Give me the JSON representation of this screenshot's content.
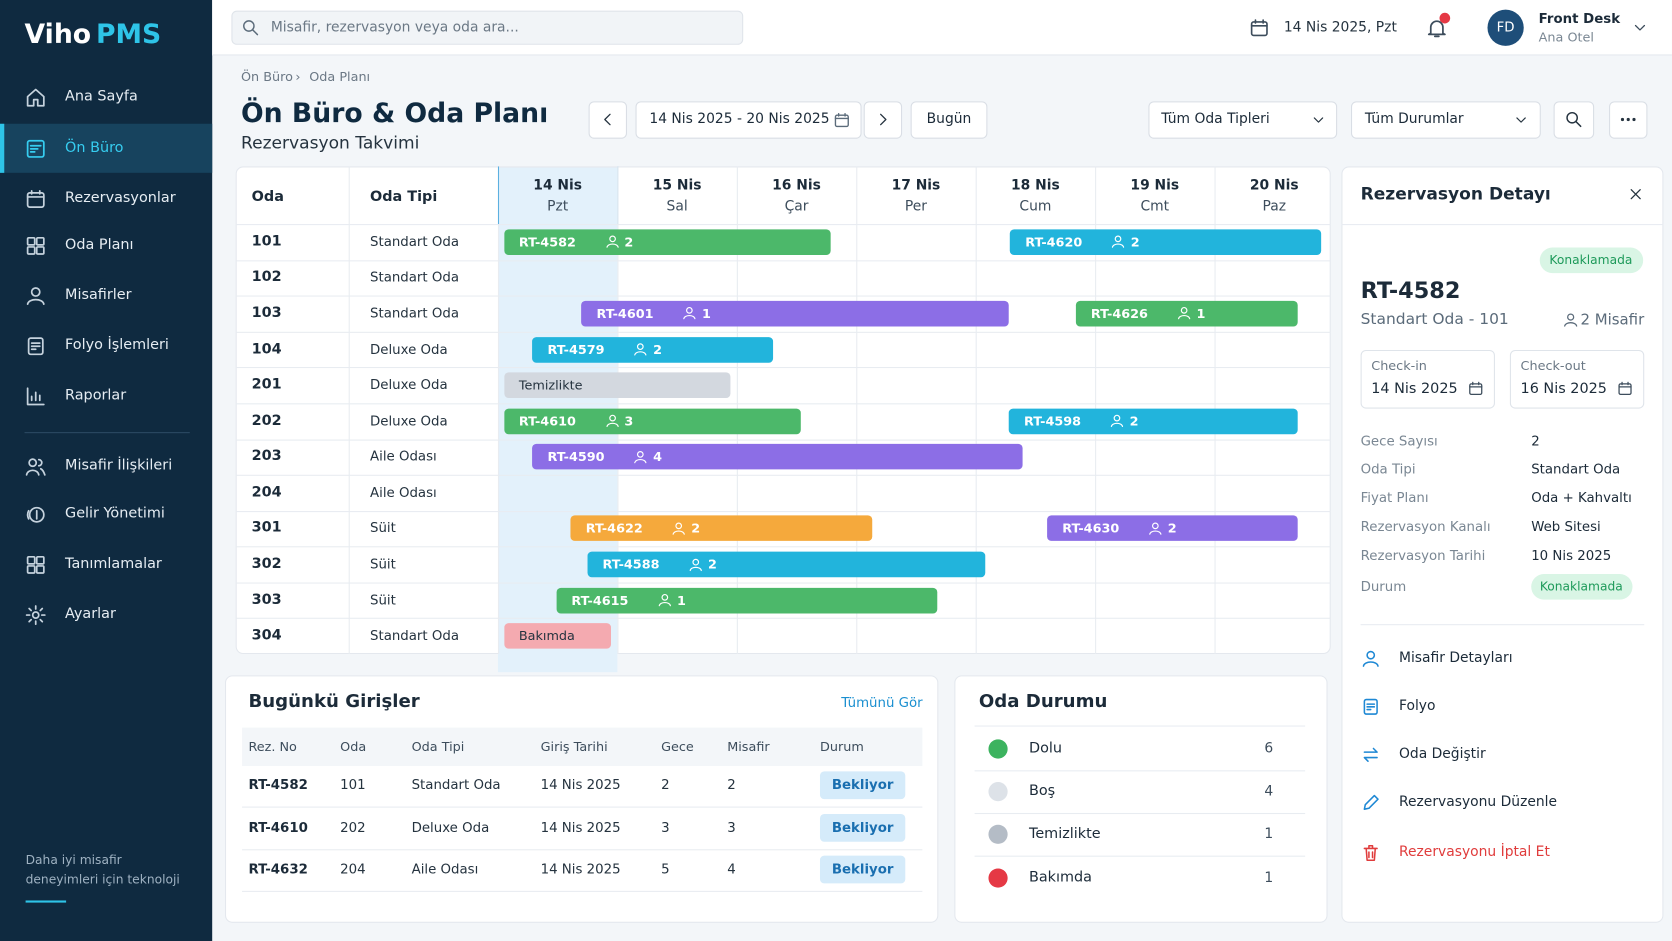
{
  "brand": {
    "name": "Viho",
    "product": "PMS"
  },
  "nav": {
    "primary": [
      "Ana Sayfa",
      "Ön Büro",
      "Rezervasyonlar",
      "Oda Planı",
      "Misafirler",
      "Folyo İşlemleri",
      "Raporlar"
    ],
    "secondary": [
      "Misafir İlişkileri",
      "Gelir Yönetimi",
      "Tanımlamalar",
      "Ayarlar"
    ],
    "active": "Ön Büro",
    "footer": "Daha iyi misafir deneyimleri için teknoloji"
  },
  "topbar": {
    "search_placeholder": "Misafir, rezervasyon veya oda ara...",
    "date": "14 Nis 2025, Pzt",
    "user": {
      "initials": "FD",
      "name": "Front Desk",
      "hotel": "Ana Otel"
    }
  },
  "breadcrumb": [
    "Ön Büro",
    "Oda Planı"
  ],
  "header": {
    "title": "Ön Büro & Oda Planı",
    "subtitle": "Rezervasyon Takvimi",
    "date_range": "14 Nis 2025 - 20 Nis 2025",
    "today_button": "Bugün",
    "room_type_filter": "Tüm Oda Tipleri",
    "status_filter": "Tüm Durumlar"
  },
  "calendar": {
    "columns": [
      "Oda",
      "Oda Tipi"
    ],
    "days": [
      {
        "date": "14 Nis",
        "day": "Pzt"
      },
      {
        "date": "15 Nis",
        "day": "Sal"
      },
      {
        "date": "16 Nis",
        "day": "Çar"
      },
      {
        "date": "17 Nis",
        "day": "Per"
      },
      {
        "date": "18 Nis",
        "day": "Cum"
      },
      {
        "date": "19 Nis",
        "day": "Cmt"
      },
      {
        "date": "20 Nis",
        "day": "Paz"
      }
    ],
    "rooms": [
      {
        "number": "101",
        "type": "Standart Oda",
        "bookings": [
          {
            "label": "RT-4582",
            "guests": 2,
            "color": "#4cb86a"
          },
          {
            "label": "RT-4620",
            "guests": 2,
            "color": "#22b4dc"
          }
        ]
      },
      {
        "number": "102",
        "type": "Standart Oda",
        "bookings": []
      },
      {
        "number": "103",
        "type": "Standart Oda",
        "bookings": [
          {
            "label": "RT-4601",
            "guests": 1,
            "color": "#8c6ee6"
          },
          {
            "label": "RT-4626",
            "guests": 1,
            "color": "#4cb86a"
          }
        ]
      },
      {
        "number": "104",
        "type": "Deluxe Oda",
        "bookings": [
          {
            "label": "RT-4579",
            "guests": 2,
            "color": "#22b4dc"
          }
        ]
      },
      {
        "number": "201",
        "type": "Deluxe Oda",
        "bookings": [
          {
            "label": "Temizlikte",
            "color": "#d3d8df"
          }
        ]
      },
      {
        "number": "202",
        "type": "Deluxe Oda",
        "bookings": [
          {
            "label": "RT-4610",
            "guests": 3,
            "color": "#4cb86a"
          },
          {
            "label": "RT-4598",
            "guests": 2,
            "color": "#22b4dc"
          }
        ]
      },
      {
        "number": "203",
        "type": "Aile Odası",
        "bookings": [
          {
            "label": "RT-4590",
            "guests": 4,
            "color": "#8c6ee6"
          }
        ]
      },
      {
        "number": "204",
        "type": "Aile Odası",
        "bookings": []
      },
      {
        "number": "301",
        "type": "Süit",
        "bookings": [
          {
            "label": "RT-4622",
            "guests": 2,
            "color": "#f5a93c"
          },
          {
            "label": "RT-4630",
            "guests": 2,
            "color": "#8c6ee6"
          }
        ]
      },
      {
        "number": "302",
        "type": "Süit",
        "bookings": [
          {
            "label": "RT-4588",
            "guests": 2,
            "color": "#22b4dc"
          }
        ]
      },
      {
        "number": "303",
        "type": "Süit",
        "bookings": [
          {
            "label": "RT-4615",
            "guests": 1,
            "color": "#4cb86a"
          }
        ]
      },
      {
        "number": "304",
        "type": "Standart Oda",
        "bookings": [
          {
            "label": "Bakımda",
            "color": "#f4aab0"
          }
        ]
      }
    ]
  },
  "arrivals": {
    "title": "Bugünkü Girişler",
    "link": "Tümünü Gör",
    "headers": [
      "Rez. No",
      "Oda",
      "Oda Tipi",
      "Giriş Tarihi",
      "Gece",
      "Misafir",
      "Durum"
    ],
    "rows": [
      [
        "RT-4582",
        "101",
        "Standart Oda",
        "14 Nis 2025",
        2,
        2,
        "Bekliyor"
      ],
      [
        "RT-4610",
        "202",
        "Deluxe Oda",
        "14 Nis 2025",
        3,
        3,
        "Bekliyor"
      ],
      [
        "RT-4632",
        "204",
        "Aile Odası",
        "14 Nis 2025",
        5,
        4,
        "Bekliyor"
      ]
    ]
  },
  "room_status": {
    "title": "Oda Durumu",
    "items": [
      {
        "label": "Dolu",
        "count": 6,
        "color": "#3cb35f"
      },
      {
        "label": "Boş",
        "count": 4,
        "color": "#dde2e8"
      },
      {
        "label": "Temizlikte",
        "count": 1,
        "color": "#b4bcc6"
      },
      {
        "label": "Bakımda",
        "count": 1,
        "color": "#e53945"
      }
    ]
  },
  "detail": {
    "title": "Rezervasyon Detayı",
    "status": "Konaklamada",
    "id": "RT-4582",
    "room": "Standart Oda - 101",
    "guests": "2 Misafir",
    "check_in": {
      "label": "Check-in",
      "value": "14 Nis 2025"
    },
    "check_out": {
      "label": "Check-out",
      "value": "16 Nis 2025"
    },
    "fields": [
      [
        "Gece Sayısı",
        2
      ],
      [
        "Oda Tipi",
        "Standart Oda"
      ],
      [
        "Fiyat Planı",
        "Oda + Kahvaltı"
      ],
      [
        "Rezervasyon Kanalı",
        "Web Sitesi"
      ],
      [
        "Rezervasyon Tarihi",
        "10 Nis 2025"
      ],
      [
        "Durum",
        "Konaklamada"
      ]
    ],
    "actions": [
      "Misafir Detayları",
      "Folyo",
      "Oda Değiştir",
      "Rezervasyonu Düzenle",
      "Rezervasyonu İptal Et"
    ]
  }
}
